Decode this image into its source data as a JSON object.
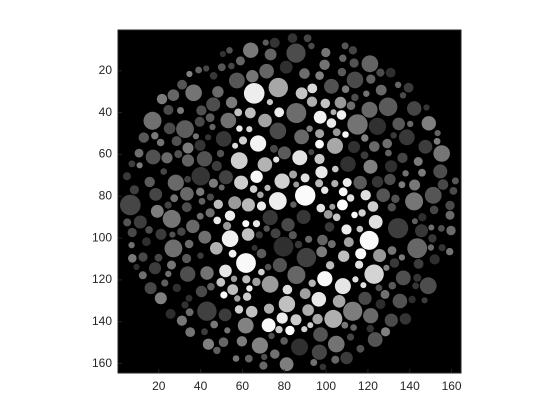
{
  "chart_data": {
    "type": "image",
    "xlim": [
      0.5,
      164.5
    ],
    "ylim": [
      0.5,
      164.5
    ],
    "y_reversed": true,
    "xticks": [
      20,
      40,
      60,
      80,
      100,
      120,
      140,
      160
    ],
    "yticks": [
      20,
      40,
      60,
      80,
      100,
      120,
      140,
      160
    ]
  }
}
